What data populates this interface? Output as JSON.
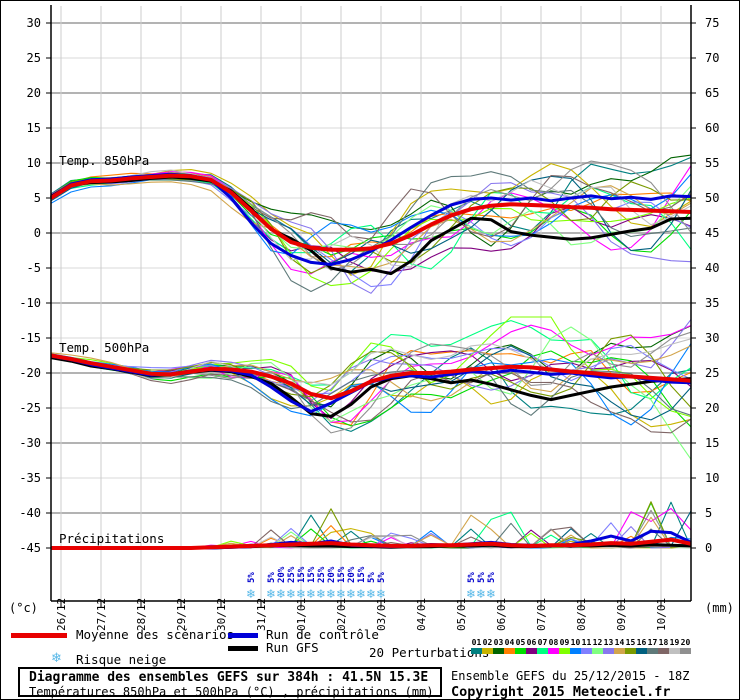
{
  "chart": {
    "unit_left": "(°c)",
    "unit_right": "(mm)",
    "left_ticks": [
      30,
      25,
      20,
      15,
      10,
      5,
      0,
      -5,
      -10,
      -15,
      -20,
      -25,
      -30,
      -35,
      -40,
      -45
    ],
    "right_ticks": [
      75,
      70,
      65,
      60,
      55,
      50,
      45,
      40,
      35,
      30,
      25,
      20,
      15,
      10,
      5,
      0
    ],
    "date_ticks": [
      "26/12",
      "27/12",
      "28/12",
      "29/12",
      "30/12",
      "31/12",
      "01/01",
      "02/01",
      "03/01",
      "04/01",
      "05/01",
      "06/01",
      "07/01",
      "08/01",
      "09/01",
      "10/01"
    ],
    "grid_color_thin": "#d9d9d9",
    "grid_color_thick": "#b3b3b3",
    "grid_color_vert": "#cccccc"
  },
  "chart_data": {
    "type": "line",
    "title": "Diagramme des ensembles GEFS sur 384h : 41.5N 15.3E",
    "subtitle": "Températures 850hPa et 500hPa (°C) , précipitations (mm)",
    "time_axis": {
      "run": "25/12/2015 18Z",
      "hours_total": 384,
      "step_hours": 12,
      "points": 33
    },
    "axis_left_range": [
      30,
      -45
    ],
    "axis_right_range_mm": [
      75,
      0
    ],
    "panels": [
      {
        "id": "temp850",
        "label": "Temp. 850hPa",
        "unit": "°C",
        "series": [
          {
            "name": "Moyenne des scénarios",
            "color": "#e80000",
            "values": [
              5.0,
              6.8,
              7.4,
              7.5,
              7.8,
              8.0,
              8.2,
              8.1,
              7.6,
              5.8,
              3.2,
              0.6,
              -1.3,
              -2.1,
              -2.4,
              -2.4,
              -2.2,
              -1.5,
              -0.3,
              1.2,
              2.5,
              3.4,
              3.9,
              4.1,
              4.0,
              3.9,
              3.7,
              3.6,
              3.4,
              3.3,
              3.2,
              3.1,
              3.0
            ]
          },
          {
            "name": "Run de contrôle",
            "color": "#0000d8",
            "values": [
              5.1,
              7.0,
              7.6,
              7.7,
              8.0,
              8.2,
              8.4,
              8.2,
              7.6,
              5.0,
              1.5,
              -1.5,
              -3.2,
              -4.2,
              -4.5,
              -3.8,
              -2.6,
              -1.0,
              0.8,
              2.5,
              4.0,
              4.8,
              5.0,
              4.7,
              5.0,
              4.6,
              5.0,
              5.3,
              4.9,
              5.1,
              4.8,
              5.3,
              5.2
            ]
          },
          {
            "name": "Run GFS",
            "color": "#000000",
            "values": [
              5.2,
              6.9,
              7.2,
              7.3,
              7.5,
              7.8,
              8.0,
              7.8,
              7.4,
              6.0,
              3.5,
              0.5,
              -0.8,
              -2.5,
              -5.0,
              -5.6,
              -5.2,
              -5.8,
              -4.0,
              -1.1,
              0.5,
              2.1,
              1.9,
              0.2,
              -0.3,
              -0.6,
              -0.9,
              -0.7,
              -0.2,
              0.3,
              0.7,
              2.0,
              2.1
            ]
          }
        ],
        "ensemble_spread": [
          0.5,
          0.7,
          0.7,
          0.7,
          0.7,
          0.7,
          0.8,
          0.9,
          1.1,
          1.8,
          2.8,
          3.8,
          4.5,
          5.0,
          5.3,
          5.5,
          5.5,
          5.5,
          5.4,
          5.3,
          5.2,
          5.0,
          5.0,
          5.2,
          5.5,
          5.8,
          6.0,
          6.2,
          6.4,
          6.6,
          6.8,
          7.0,
          7.0
        ],
        "clamp": [
          -11.5,
          11.8
        ]
      },
      {
        "id": "temp500",
        "label": "Temp. 500hPa",
        "unit": "°C",
        "series": [
          {
            "name": "Moyenne des scénarios",
            "color": "#e80000",
            "values": [
              -17.5,
              -18.0,
              -18.6,
              -19.1,
              -19.6,
              -20.1,
              -20.2,
              -19.8,
              -19.4,
              -19.5,
              -19.8,
              -20.5,
              -21.5,
              -23.0,
              -23.6,
              -22.6,
              -21.2,
              -20.4,
              -20.0,
              -20.0,
              -19.8,
              -19.5,
              -19.3,
              -19.1,
              -19.2,
              -19.5,
              -19.8,
              -20.0,
              -20.3,
              -20.5,
              -20.7,
              -20.9,
              -21.1
            ]
          },
          {
            "name": "Run de contrôle",
            "color": "#0000d8",
            "values": [
              -17.6,
              -18.1,
              -18.8,
              -19.3,
              -19.8,
              -20.3,
              -20.1,
              -19.7,
              -19.5,
              -19.7,
              -20.3,
              -22.0,
              -24.0,
              -25.5,
              -24.3,
              -22.8,
              -21.3,
              -20.6,
              -20.4,
              -20.6,
              -20.2,
              -19.8,
              -20.0,
              -19.6,
              -19.9,
              -20.2,
              -20.0,
              -20.4,
              -20.7,
              -20.5,
              -21.0,
              -21.3,
              -21.4
            ]
          },
          {
            "name": "Run GFS",
            "color": "#000000",
            "values": [
              -17.8,
              -18.3,
              -19.0,
              -19.4,
              -19.9,
              -20.4,
              -20.2,
              -19.9,
              -19.6,
              -19.8,
              -20.5,
              -21.5,
              -23.5,
              -25.8,
              -26.2,
              -24.5,
              -22.0,
              -20.8,
              -20.4,
              -20.8,
              -21.4,
              -21.0,
              -21.6,
              -22.4,
              -23.2,
              -23.8,
              -23.2,
              -22.6,
              -22.0,
              -21.6,
              -21.2,
              -21.0,
              -20.8
            ]
          }
        ],
        "ensemble_spread": [
          0.3,
          0.4,
          0.5,
          0.6,
          0.7,
          0.8,
          0.9,
          1.1,
          1.4,
          1.8,
          2.3,
          2.9,
          3.5,
          4.0,
          4.3,
          4.5,
          4.6,
          4.8,
          5.0,
          5.0,
          5.1,
          5.3,
          5.5,
          5.7,
          5.9,
          6.0,
          6.2,
          6.4,
          6.6,
          6.7,
          6.8,
          7.0,
          7.0
        ],
        "clamp": [
          -33.5,
          -12.0
        ]
      },
      {
        "id": "precipitation",
        "label": "Précipitations",
        "unit": "mm",
        "series": [
          {
            "name": "Moyenne des scénarios",
            "color": "#e80000",
            "values": [
              0,
              0,
              0,
              0,
              0,
              0,
              0,
              0,
              0.1,
              0.2,
              0.3,
              0.4,
              0.5,
              0.6,
              0.7,
              0.5,
              0.4,
              0.3,
              0.3,
              0.4,
              0.4,
              0.5,
              0.6,
              0.4,
              0.3,
              0.4,
              0.4,
              0.5,
              0.7,
              0.6,
              0.9,
              1.2,
              0.6
            ]
          },
          {
            "name": "Run de contrôle",
            "color": "#0000d8",
            "values": [
              0,
              0,
              0,
              0,
              0,
              0,
              0,
              0,
              0,
              0.1,
              0.2,
              0.5,
              0.8,
              0.6,
              1.0,
              0.4,
              0.3,
              0.2,
              0.3,
              0.5,
              0.4,
              0.6,
              0.8,
              0.5,
              0.4,
              0.3,
              0.5,
              1.0,
              1.7,
              1.0,
              2.4,
              2.2,
              0.8
            ]
          },
          {
            "name": "Run GFS",
            "color": "#000000",
            "values": [
              0,
              0,
              0,
              0,
              0,
              0,
              0,
              0,
              0,
              0.1,
              0.2,
              0.3,
              0.4,
              0.3,
              0.3,
              0.2,
              0.2,
              0.1,
              0.2,
              0.2,
              0.3,
              0.3,
              0.4,
              0.2,
              0.2,
              0.3,
              0.3,
              0.3,
              0.4,
              0.3,
              0.5,
              0.4,
              0.3
            ]
          }
        ],
        "ensemble_spike_max": [
          0,
          0,
          0,
          0,
          0,
          0,
          0,
          0,
          0.5,
          1,
          1.5,
          3,
          5,
          6,
          6,
          4,
          3,
          2.5,
          2,
          2.5,
          3,
          5,
          8,
          6,
          4,
          3,
          3,
          3,
          4,
          6,
          12,
          8,
          6
        ],
        "clamp": [
          0,
          12.4
        ]
      }
    ],
    "perturbation_count": 20,
    "perturbation_colors": [
      "#008080",
      "#c8b400",
      "#006400",
      "#ff8000",
      "#00dd00",
      "#800080",
      "#00ff80",
      "#ff00ff",
      "#80ff00",
      "#0080ff",
      "#8080ff",
      "#80ff80",
      "#8877ee",
      "#d2a54c",
      "#7a9a00",
      "#00607f",
      "#5f7a7a",
      "#7f6666",
      "#c0c0c0",
      "#909090"
    ],
    "snow_risk": {
      "label": "Risque neige",
      "points": [
        {
          "t": 120,
          "pct": "5%"
        },
        {
          "t": 132,
          "pct": "5%"
        },
        {
          "t": 138,
          "pct": "20%"
        },
        {
          "t": 144,
          "pct": "25%"
        },
        {
          "t": 150,
          "pct": "15%"
        },
        {
          "t": 156,
          "pct": "15%"
        },
        {
          "t": 162,
          "pct": "25%"
        },
        {
          "t": 168,
          "pct": "20%"
        },
        {
          "t": 174,
          "pct": "15%"
        },
        {
          "t": 180,
          "pct": "20%"
        },
        {
          "t": 186,
          "pct": "15%"
        },
        {
          "t": 192,
          "pct": "5%"
        },
        {
          "t": 198,
          "pct": "5%"
        },
        {
          "t": 252,
          "pct": "5%"
        },
        {
          "t": 258,
          "pct": "5%"
        },
        {
          "t": 264,
          "pct": "5%"
        }
      ]
    }
  },
  "legend": {
    "mean": "Moyenne des scénarios",
    "control": "Run de contrôle",
    "gfs": "Run GFS",
    "perturbations": "20 Perturbations",
    "snow": "Risque neige",
    "snow_icon_color": "#58b8e8"
  },
  "footer": {
    "title": "Diagramme des ensembles GEFS sur 384h : 41.5N 15.3E",
    "subtitle": "Températures 850hPa et 500hPa (°C) , précipitations (mm)",
    "run_info": "Ensemble GEFS du 25/12/2015 - 18Z",
    "copyright": "Copyright 2015 Meteociel.fr"
  }
}
